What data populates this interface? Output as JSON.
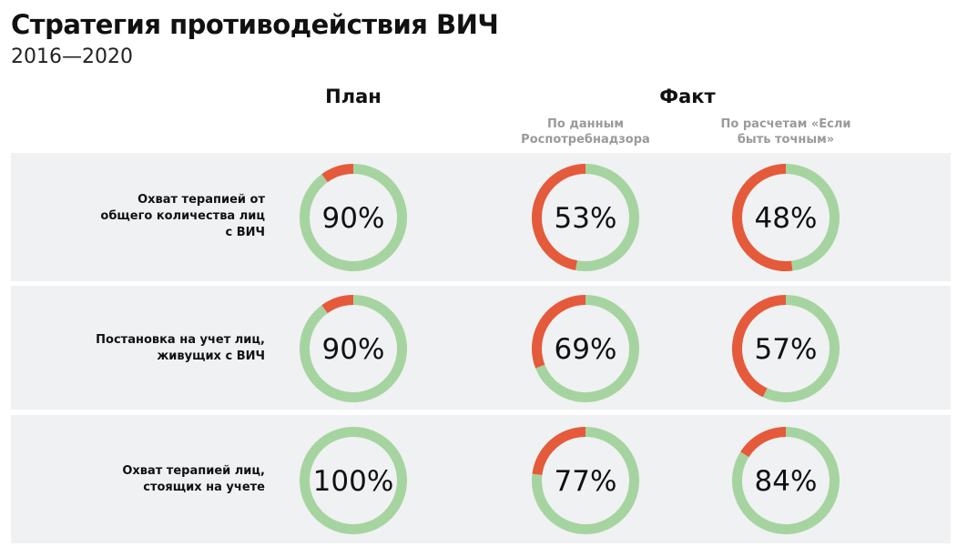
{
  "title": "Стратегия противодействия ВИЧ",
  "subtitle": "2016—2020",
  "colors": {
    "done": "#a6d4a0",
    "remaining": "#e45a3b",
    "row_bg": "#f0f1f2"
  },
  "chart_data": {
    "type": "donut",
    "title": "Стратегия противодействия ВИЧ",
    "subtitle": "2016—2020",
    "groups": [
      {
        "label": "План",
        "columns": [
          {
            "label": ""
          }
        ]
      },
      {
        "label": "Факт",
        "columns": [
          {
            "label": "По данным Роспотребнадзора"
          },
          {
            "label": "По расчетам «Если быть точным»"
          }
        ]
      }
    ],
    "rows": [
      {
        "label": "Охват терапией от общего количества лиц с ВИЧ",
        "values": [
          90,
          53,
          48
        ],
        "labels": [
          "90%",
          "53%",
          "48%"
        ]
      },
      {
        "label": "Постановка на учет лиц, живущих с ВИЧ",
        "values": [
          90,
          69,
          57
        ],
        "labels": [
          "90%",
          "69%",
          "57%"
        ]
      },
      {
        "label": "Охват терапией лиц, стоящих на учете",
        "values": [
          100,
          77,
          84
        ],
        "labels": [
          "100%",
          "77%",
          "84%"
        ]
      }
    ]
  }
}
